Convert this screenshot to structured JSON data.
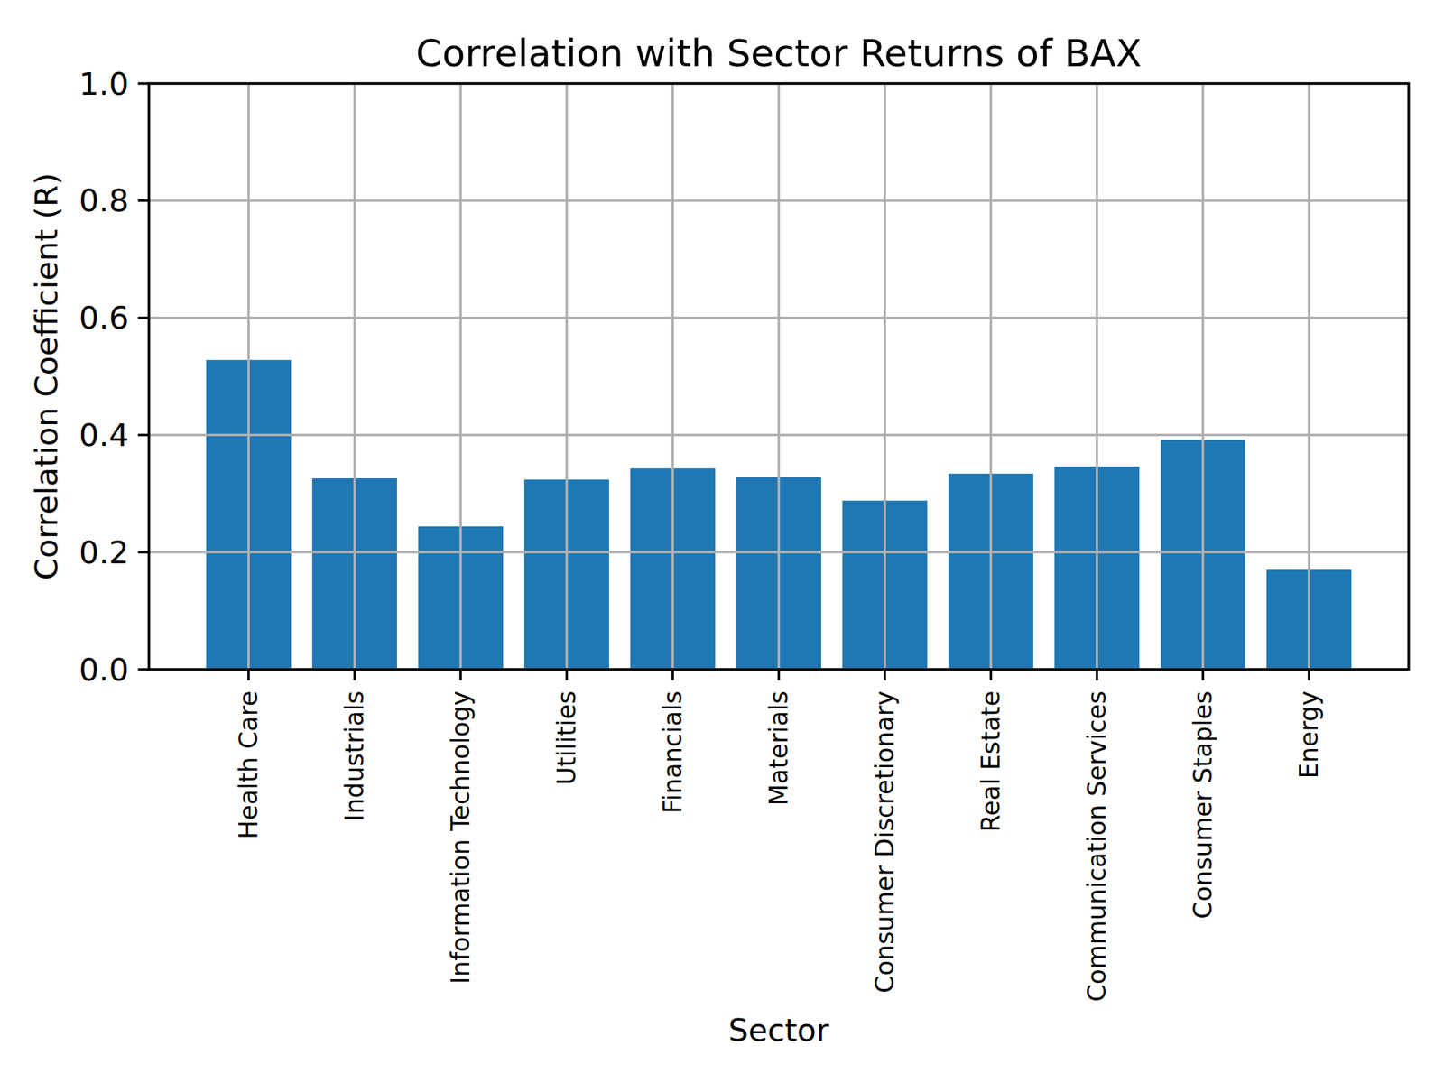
{
  "chart_data": {
    "type": "bar",
    "title": "Correlation with Sector Returns of BAX",
    "x_label": "Sector",
    "y_label": "Correlation Coefficient (R)",
    "categories": [
      "Health Care",
      "Industrials",
      "Information Technology",
      "Utilities",
      "Financials",
      "Materials",
      "Consumer Discretionary",
      "Real Estate",
      "Communication Services",
      "Consumer Staples",
      "Energy"
    ],
    "values": [
      0.528,
      0.326,
      0.244,
      0.324,
      0.343,
      0.328,
      0.288,
      0.334,
      0.346,
      0.392,
      0.17
    ],
    "color": "#1f77b4",
    "ylim": [
      0,
      1
    ],
    "yticks": [
      {
        "value": 0,
        "label": "0.0"
      },
      {
        "value": 0.2,
        "label": "0.2"
      },
      {
        "value": 0.4,
        "label": "0.4"
      },
      {
        "value": 0.6,
        "label": "0.6"
      },
      {
        "value": 0.8,
        "label": "0.8"
      },
      {
        "value": 1,
        "label": "1.0"
      }
    ],
    "grid": true
  }
}
